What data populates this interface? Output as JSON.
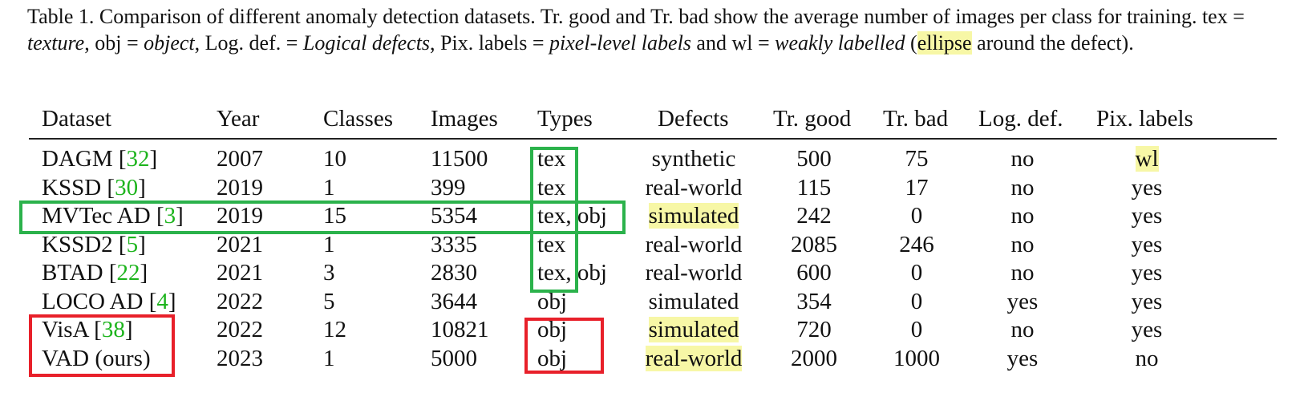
{
  "caption": {
    "s1": "Table 1. Comparison of different anomaly detection datasets. Tr. good and Tr. bad show the average number of images per class for training. tex = ",
    "texture": "texture",
    "s2": ", obj = ",
    "object": "object",
    "s3": ", Log. def. = ",
    "logical": "Logical defects",
    "s4": ", Pix. labels = ",
    "pixel": "pixel-level labels",
    "s5": " and wl = ",
    "weak": "weakly labelled",
    "s6": " (",
    "ellipse": "ellipse",
    "s7": " around the defect)."
  },
  "headers": [
    "Dataset",
    "Year",
    "Classes",
    "Images",
    "Types",
    "Defects",
    "Tr. good",
    "Tr. bad",
    "Log. def.",
    "Pix. labels"
  ],
  "rows": [
    {
      "name": "DAGM ",
      "cite": "32",
      "close": "",
      "year": "2007",
      "classes": "10",
      "images": "11500",
      "types": "tex",
      "defects": "synthetic",
      "good": "500",
      "bad": "75",
      "log": "no",
      "pix": "wl"
    },
    {
      "name": "KSSD ",
      "cite": "30",
      "close": "",
      "year": "2019",
      "classes": "1",
      "images": "399",
      "types": "tex",
      "defects": "real-world",
      "good": "115",
      "bad": "17",
      "log": "no",
      "pix": "yes"
    },
    {
      "name": "MVTec AD ",
      "cite": "3",
      "close": "",
      "year": "2019",
      "classes": "15",
      "images": "5354",
      "types": "tex, obj",
      "defects": "simulated",
      "good": "242",
      "bad": "0",
      "log": "no",
      "pix": "yes"
    },
    {
      "name": "KSSD2 ",
      "cite": "5",
      "close": "",
      "year": "2021",
      "classes": "1",
      "images": "3335",
      "types": "tex",
      "defects": "real-world",
      "good": "2085",
      "bad": "246",
      "log": "no",
      "pix": "yes"
    },
    {
      "name": "BTAD ",
      "cite": "22",
      "close": "",
      "year": "2021",
      "classes": "3",
      "images": "2830",
      "types": "tex, obj",
      "defects": "real-world",
      "good": "600",
      "bad": "0",
      "log": "no",
      "pix": "yes"
    },
    {
      "name": "LOCO AD ",
      "cite": "4",
      "close": "",
      "year": "2022",
      "classes": "5",
      "images": "3644",
      "types": "obj",
      "defects": "simulated",
      "good": "354",
      "bad": "0",
      "log": "yes",
      "pix": "yes"
    },
    {
      "name": "VisA ",
      "cite": "38",
      "close": "",
      "year": "2022",
      "classes": "12",
      "images": "10821",
      "types": "obj",
      "defects": "simulated",
      "good": "720",
      "bad": "0",
      "log": "no",
      "pix": "yes"
    },
    {
      "name": "VAD (ours)",
      "cite": "",
      "close": "",
      "year": "2023",
      "classes": "1",
      "images": "5000",
      "types": "obj",
      "defects": "real-world",
      "good": "2000",
      "bad": "1000",
      "log": "yes",
      "pix": "no"
    }
  ],
  "highlight_color": "#f7f7a6",
  "green_box_color": "#2bb24b",
  "red_box_color": "#e8202a"
}
